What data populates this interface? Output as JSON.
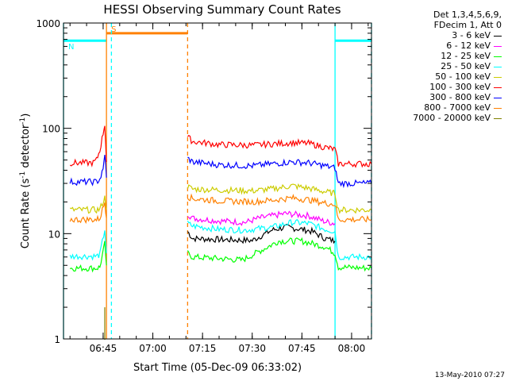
{
  "chart_data": {
    "type": "line",
    "title": "HESSI Observing Summary Count Rates",
    "xlabel": "Start Time (05-Dec-09 06:33:02)",
    "ylabel_prefix": "Count Rate (s",
    "ylabel_sup1": "-1",
    "ylabel_mid": " detector",
    "ylabel_sup2": "-1",
    "ylabel_suffix": ")",
    "yscale": "log",
    "ylim": [
      1,
      1000
    ],
    "xlim": [
      "06:33:02",
      "08:06:00"
    ],
    "x_ticks": [
      "06:45",
      "07:00",
      "07:15",
      "07:30",
      "07:45",
      "08:00"
    ],
    "y_ticks": [
      "1",
      "10",
      "100",
      "1000"
    ],
    "legend_header": [
      "Det 1,3,4,5,6,9,",
      "FDecim 1, Att 0"
    ],
    "series": [
      {
        "name": "3 - 6 keV",
        "color": "#000000",
        "segments": [
          {
            "t": [
              "07:10:30",
              "07:12",
              "07:20",
              "07:30",
              "07:36",
              "07:40",
              "07:45",
              "07:48",
              "07:52",
              "07:55"
            ],
            "v": [
              10.5,
              9,
              8.8,
              8.6,
              10.8,
              11.5,
              11,
              10.5,
              9,
              8.5
            ]
          }
        ]
      },
      {
        "name": "6 - 12 keV",
        "color": "#ff00ff",
        "segments": [
          {
            "t": [
              "07:10:30",
              "07:12",
              "07:20",
              "07:28",
              "07:32",
              "07:40",
              "07:47",
              "07:52",
              "07:55"
            ],
            "v": [
              15.5,
              14,
              13.2,
              12.8,
              14,
              15.5,
              14.8,
              13,
              12.5
            ]
          }
        ]
      },
      {
        "name": "12 - 25 keV",
        "color": "#00ff00",
        "segments": [
          {
            "t": [
              "06:35",
              "06:43",
              "06:44",
              "06:45:30",
              "06:46"
            ],
            "v": [
              4.7,
              4.7,
              4.8,
              8,
              5
            ]
          },
          {
            "t": [
              "07:10:30",
              "07:12",
              "07:20",
              "07:27",
              "07:31",
              "07:38",
              "07:45",
              "07:52",
              "07:55",
              "07:56",
              "08:06"
            ],
            "v": [
              6.5,
              6,
              5.8,
              5.6,
              6.5,
              8.5,
              8.5,
              7.5,
              6.5,
              4.8,
              4.7
            ]
          }
        ]
      },
      {
        "name": "25 - 50 keV",
        "color": "#00ffff",
        "segments": [
          {
            "t": [
              "06:35",
              "06:43",
              "06:44",
              "06:45:30",
              "06:46"
            ],
            "v": [
              6.1,
              6.1,
              6.3,
              11,
              6.5
            ]
          },
          {
            "t": [
              "07:10:30",
              "07:12",
              "07:20",
              "07:28",
              "07:36",
              "07:42",
              "07:47",
              "07:52",
              "07:55",
              "07:56",
              "08:06"
            ],
            "v": [
              12.5,
              11.8,
              11,
              10.8,
              11.5,
              12.8,
              12.5,
              11,
              10.5,
              6,
              6
            ]
          }
        ]
      },
      {
        "name": "50 - 100 keV",
        "color": "#cccc00",
        "segments": [
          {
            "t": [
              "06:35",
              "06:43",
              "06:44",
              "06:45:30",
              "06:46"
            ],
            "v": [
              16.8,
              16.8,
              17,
              22,
              17
            ]
          },
          {
            "t": [
              "07:10:30",
              "07:12",
              "07:20",
              "07:30",
              "07:36",
              "07:42",
              "07:47",
              "07:52",
              "07:55",
              "07:56",
              "08:06"
            ],
            "v": [
              28,
              26.5,
              26,
              25.5,
              26.5,
              28.5,
              27,
              25,
              24,
              16.8,
              16.8
            ]
          }
        ]
      },
      {
        "name": "100 - 300 keV",
        "color": "#ff0000",
        "segments": [
          {
            "t": [
              "06:35",
              "06:42",
              "06:43",
              "06:44",
              "06:45",
              "06:45:30",
              "06:46"
            ],
            "v": [
              47,
              47,
              50,
              62,
              90,
              110,
              48
            ]
          },
          {
            "t": [
              "07:10:30",
              "07:12",
              "07:20",
              "07:30",
              "07:36",
              "07:42",
              "07:47",
              "07:52",
              "07:55",
              "07:56",
              "08:06"
            ],
            "v": [
              83,
              75,
              70,
              69,
              71,
              73,
              72,
              66,
              63,
              46,
              46
            ]
          }
        ]
      },
      {
        "name": "300 - 800 keV",
        "color": "#0000ff",
        "segments": [
          {
            "t": [
              "06:35",
              "06:43",
              "06:44",
              "06:45",
              "06:45:30",
              "06:46"
            ],
            "v": [
              31,
              31,
              33,
              40,
              58,
              34
            ]
          },
          {
            "t": [
              "07:10:30",
              "07:12",
              "07:20",
              "07:30",
              "07:36",
              "07:42",
              "07:47",
              "07:52",
              "07:55",
              "07:56",
              "08:06"
            ],
            "v": [
              52,
              48,
              45,
              44,
              46,
              48,
              47,
              44,
              42,
              30,
              30
            ]
          }
        ]
      },
      {
        "name": "800 - 7000 keV",
        "color": "#ff8000",
        "segments": [
          {
            "t": [
              "06:35",
              "06:43",
              "06:44",
              "06:45:30",
              "06:46"
            ],
            "v": [
              13.6,
              13.6,
              14,
              20,
              14
            ]
          },
          {
            "t": [
              "07:10:30",
              "07:12",
              "07:20",
              "07:30",
              "07:36",
              "07:42",
              "07:47",
              "07:52",
              "07:55",
              "07:56",
              "08:06"
            ],
            "v": [
              22.5,
              21.5,
              20.5,
              20,
              20.8,
              21.8,
              21,
              19.5,
              19,
              13.6,
              13.6
            ]
          }
        ]
      },
      {
        "name": "7000 - 20000 keV",
        "color": "#808000",
        "segments": [
          {
            "t": [
              "06:45:30",
              "06:45:30"
            ],
            "v": [
              1,
              2
            ]
          }
        ]
      }
    ],
    "annotations": [
      {
        "kind": "region-bar",
        "color": "#ff8000",
        "label": "S",
        "t_start": "06:46",
        "t_end": "07:10:30",
        "level": 800
      },
      {
        "kind": "region-bar",
        "color": "#00ffff",
        "label": "N",
        "t_start": "06:33:02",
        "t_end": "06:46",
        "level": 680
      },
      {
        "kind": "region-bar",
        "color": "#00ffff",
        "label": "",
        "t_start": "07:55",
        "t_end": "08:06",
        "level": 680
      },
      {
        "kind": "vline",
        "color": "#ff8000",
        "style": "solid",
        "t": "06:46"
      },
      {
        "kind": "vline",
        "color": "#ff8000",
        "style": "dashed",
        "t": "07:10:30"
      },
      {
        "kind": "vline",
        "color": "#00ffff",
        "style": "solid",
        "t": "06:33:02"
      },
      {
        "kind": "vline",
        "color": "#00ffff",
        "style": "dashed",
        "t": "06:47:30"
      },
      {
        "kind": "vline",
        "color": "#00ffff",
        "style": "solid",
        "t": "07:55"
      },
      {
        "kind": "vline",
        "color": "#00ffff",
        "style": "dashed",
        "t": "08:06"
      }
    ],
    "legend_placement": "top-right",
    "grid": false
  },
  "footer": {
    "timestamp": "13-May-2010 07:27"
  }
}
